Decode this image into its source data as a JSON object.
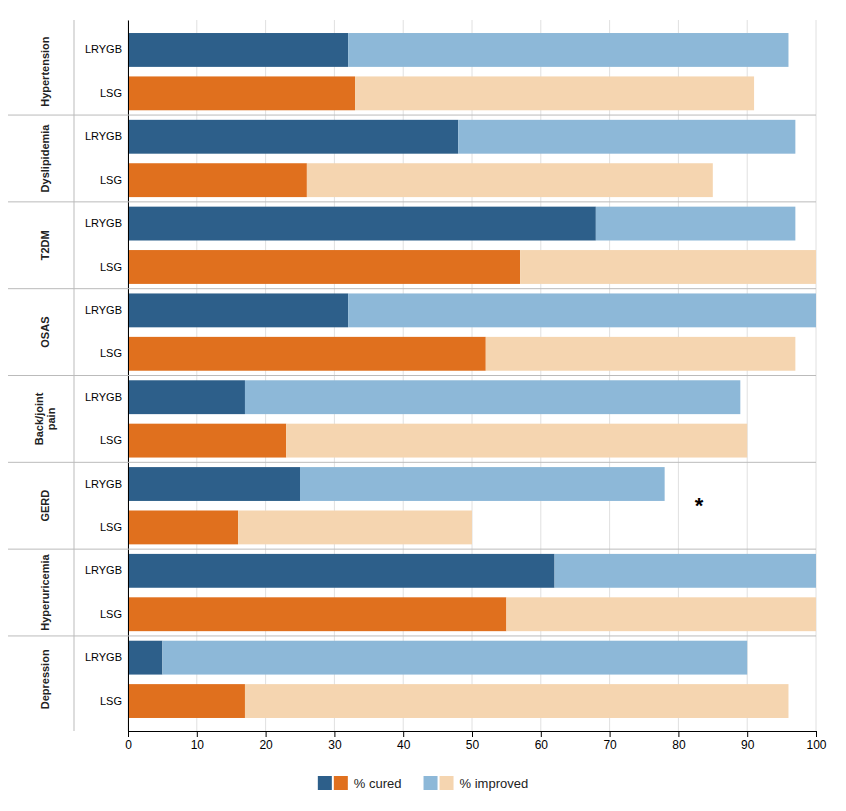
{
  "chart_data": {
    "type": "bar",
    "orientation": "horizontal",
    "stacked": true,
    "grid": true,
    "legend": "bottom",
    "groups": [
      "Hypertension",
      "Dyslipidemia",
      "T2DM",
      "OSAS",
      "Back/joint\npain",
      "GERD",
      "Hyperuricemia",
      "Depression"
    ],
    "categories": [
      "LRYGB",
      "LSG",
      "LRYGB",
      "LSG",
      "LRYGB",
      "LSG",
      "LRYGB",
      "LSG",
      "LRYGB",
      "LSG",
      "LRYGB",
      "LSG",
      "LRYGB",
      "LSG",
      "LRYGB",
      "LSG"
    ],
    "series": [
      {
        "name": "% cured",
        "colors": [
          "#2d5f8a",
          "#e0701e",
          "#2d5f8a",
          "#e0701e",
          "#2d5f8a",
          "#e0701e",
          "#2d5f8a",
          "#e0701e",
          "#2d5f8a",
          "#e0701e",
          "#2d5f8a",
          "#e0701e",
          "#2d5f8a",
          "#e0701e",
          "#2d5f8a",
          "#e0701e"
        ],
        "values": [
          32,
          33,
          48,
          26,
          68,
          57,
          32,
          52,
          17,
          23,
          25,
          16,
          62,
          55,
          5,
          17
        ]
      },
      {
        "name": "% improved",
        "colors": [
          "#8db8d8",
          "#f5d5b0",
          "#8db8d8",
          "#f5d5b0",
          "#8db8d8",
          "#f5d5b0",
          "#8db8d8",
          "#f5d5b0",
          "#8db8d8",
          "#f5d5b0",
          "#8db8d8",
          "#f5d5b0",
          "#8db8d8",
          "#f5d5b0",
          "#8db8d8",
          "#f5d5b0"
        ],
        "values": [
          64,
          58,
          49,
          59,
          29,
          43,
          68,
          45,
          72,
          67,
          53,
          34,
          38,
          45,
          85,
          79
        ]
      }
    ],
    "xlim": [
      0,
      100
    ],
    "xticks": [
      0,
      10,
      20,
      30,
      40,
      50,
      60,
      70,
      80,
      90,
      100
    ],
    "annotations": [
      {
        "text": "*",
        "x": 83,
        "group": "GERD"
      }
    ]
  }
}
